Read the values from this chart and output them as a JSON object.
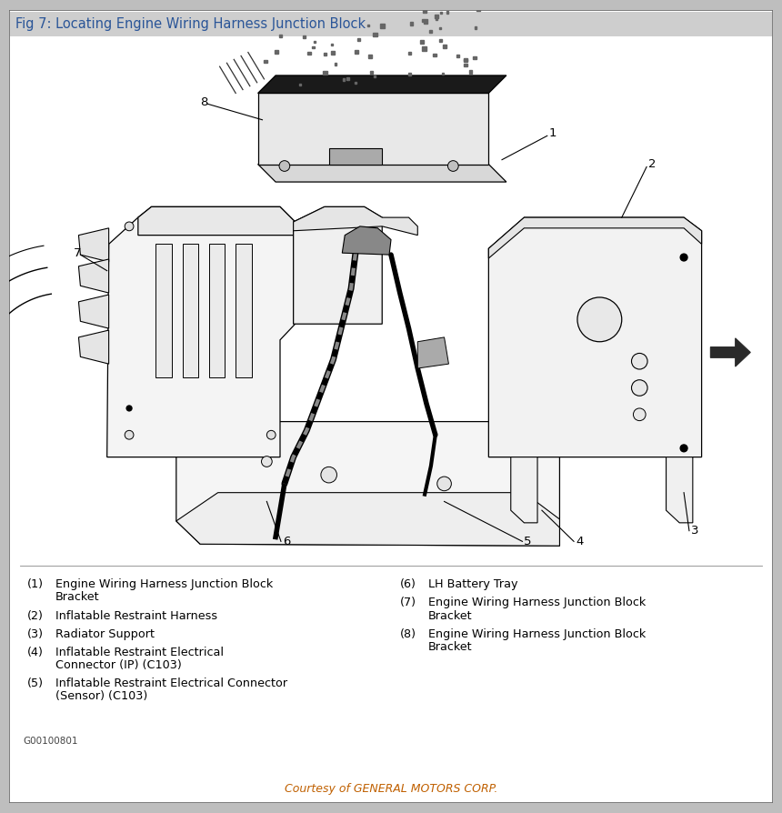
{
  "title": "Fig 7: Locating Engine Wiring Harness Junction Block",
  "title_color": "#2A5598",
  "bg_outer": "#BEBEBE",
  "bg_inner": "#FFFFFF",
  "header_bg": "#D0D0D0",
  "courtesy_text": "Courtesy of GENERAL MOTORS CORP.",
  "courtesy_color": "#C06000",
  "figure_id": "G00100801",
  "figsize": [
    8.6,
    8.94
  ],
  "dpi": 100,
  "left_items": [
    [
      "(1)",
      "Engine Wiring Harness Junction Block",
      "     Bracket"
    ],
    [
      "(2)",
      "Inflatable Restraint Harness",
      ""
    ],
    [
      "(3)",
      "Radiator Support",
      ""
    ],
    [
      "(4)",
      "Inflatable Restraint Electrical",
      "     Connector (IP) (C103)"
    ],
    [
      "(5)",
      "Inflatable Restraint Electrical Connector",
      "     (Sensor) (C103)"
    ]
  ],
  "right_items": [
    [
      "(6)",
      "LH Battery Tray",
      ""
    ],
    [
      "(7)",
      "Engine Wiring Harness Junction Block",
      "     Bracket"
    ],
    [
      "(8)",
      "Engine Wiring Harness Junction Block",
      "     Bracket"
    ]
  ]
}
